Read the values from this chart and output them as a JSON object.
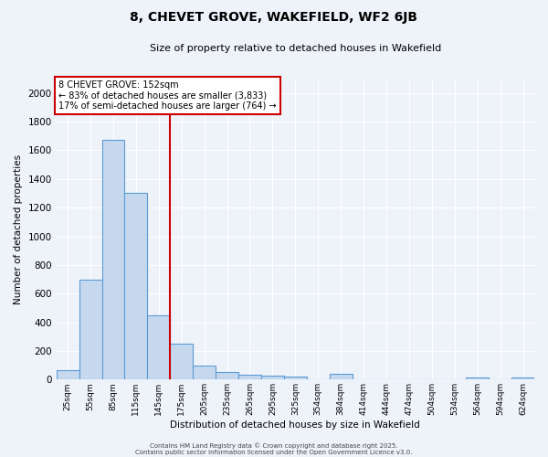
{
  "title": "8, CHEVET GROVE, WAKEFIELD, WF2 6JB",
  "subtitle": "Size of property relative to detached houses in Wakefield",
  "xlabel": "Distribution of detached houses by size in Wakefield",
  "ylabel": "Number of detached properties",
  "categories": [
    "25sqm",
    "55sqm",
    "85sqm",
    "115sqm",
    "145sqm",
    "175sqm",
    "205sqm",
    "235sqm",
    "265sqm",
    "295sqm",
    "325sqm",
    "354sqm",
    "384sqm",
    "414sqm",
    "444sqm",
    "474sqm",
    "504sqm",
    "534sqm",
    "564sqm",
    "594sqm",
    "624sqm"
  ],
  "values": [
    65,
    700,
    1670,
    1300,
    450,
    250,
    95,
    55,
    35,
    25,
    18,
    0,
    40,
    0,
    0,
    0,
    0,
    0,
    15,
    0,
    15
  ],
  "bar_color": "#c5d8ee",
  "bar_edge_color": "#5b9bd5",
  "red_line_x": 4.5,
  "red_line_color": "#cc0000",
  "ylim": [
    0,
    2100
  ],
  "yticks": [
    0,
    200,
    400,
    600,
    800,
    1000,
    1200,
    1400,
    1600,
    1800,
    2000
  ],
  "annotation_box_text": "8 CHEVET GROVE: 152sqm\n← 83% of detached houses are smaller (3,833)\n17% of semi-detached houses are larger (764) →",
  "background_color": "#eef2f9",
  "grid_color": "#ffffff",
  "footer_line1": "Contains HM Land Registry data © Crown copyright and database right 2025.",
  "footer_line2": "Contains public sector information licensed under the Open Government Licence v3.0."
}
